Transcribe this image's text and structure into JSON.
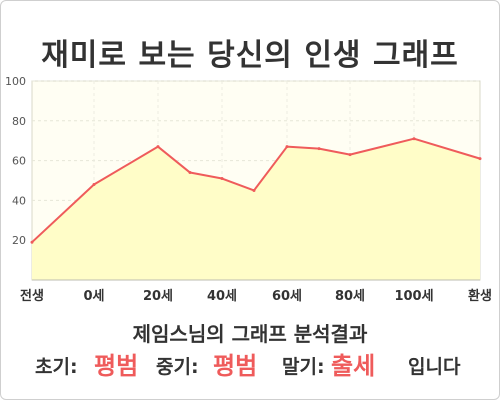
{
  "title": "재미로 보는 당신의 인생 그래프",
  "summary": "제임스님의 그래프 분석결과",
  "phases": {
    "early_label": "초기:",
    "early_value": "평범",
    "mid_label": "중기:",
    "mid_value": "평범",
    "late_label": "말기:",
    "late_value": "출세",
    "ending": "입니다"
  },
  "colors": {
    "line": "#ef5b5b",
    "fill": "#fffdc8",
    "value_text": "#ef5b5b"
  },
  "chart_data": {
    "type": "area",
    "x_tick_labels": [
      "전생",
      "0세",
      "20세",
      "40세",
      "60세",
      "80세",
      "100세",
      "환생"
    ],
    "y_ticks": [
      20,
      40,
      60,
      80,
      100
    ],
    "ylim": [
      0,
      100
    ],
    "grid": true,
    "series": [
      {
        "points": [
          {
            "x": "전생",
            "y": 19
          },
          {
            "x": "0세",
            "y": 48
          },
          {
            "x": "20세",
            "y": 67
          },
          {
            "x": "30세",
            "y": 54
          },
          {
            "x": "40세",
            "y": 51
          },
          {
            "x": "50세",
            "y": 45
          },
          {
            "x": "60세",
            "y": 67
          },
          {
            "x": "70세",
            "y": 66
          },
          {
            "x": "80세",
            "y": 63
          },
          {
            "x": "100세",
            "y": 71
          },
          {
            "x": "환생",
            "y": 61
          }
        ]
      }
    ]
  }
}
